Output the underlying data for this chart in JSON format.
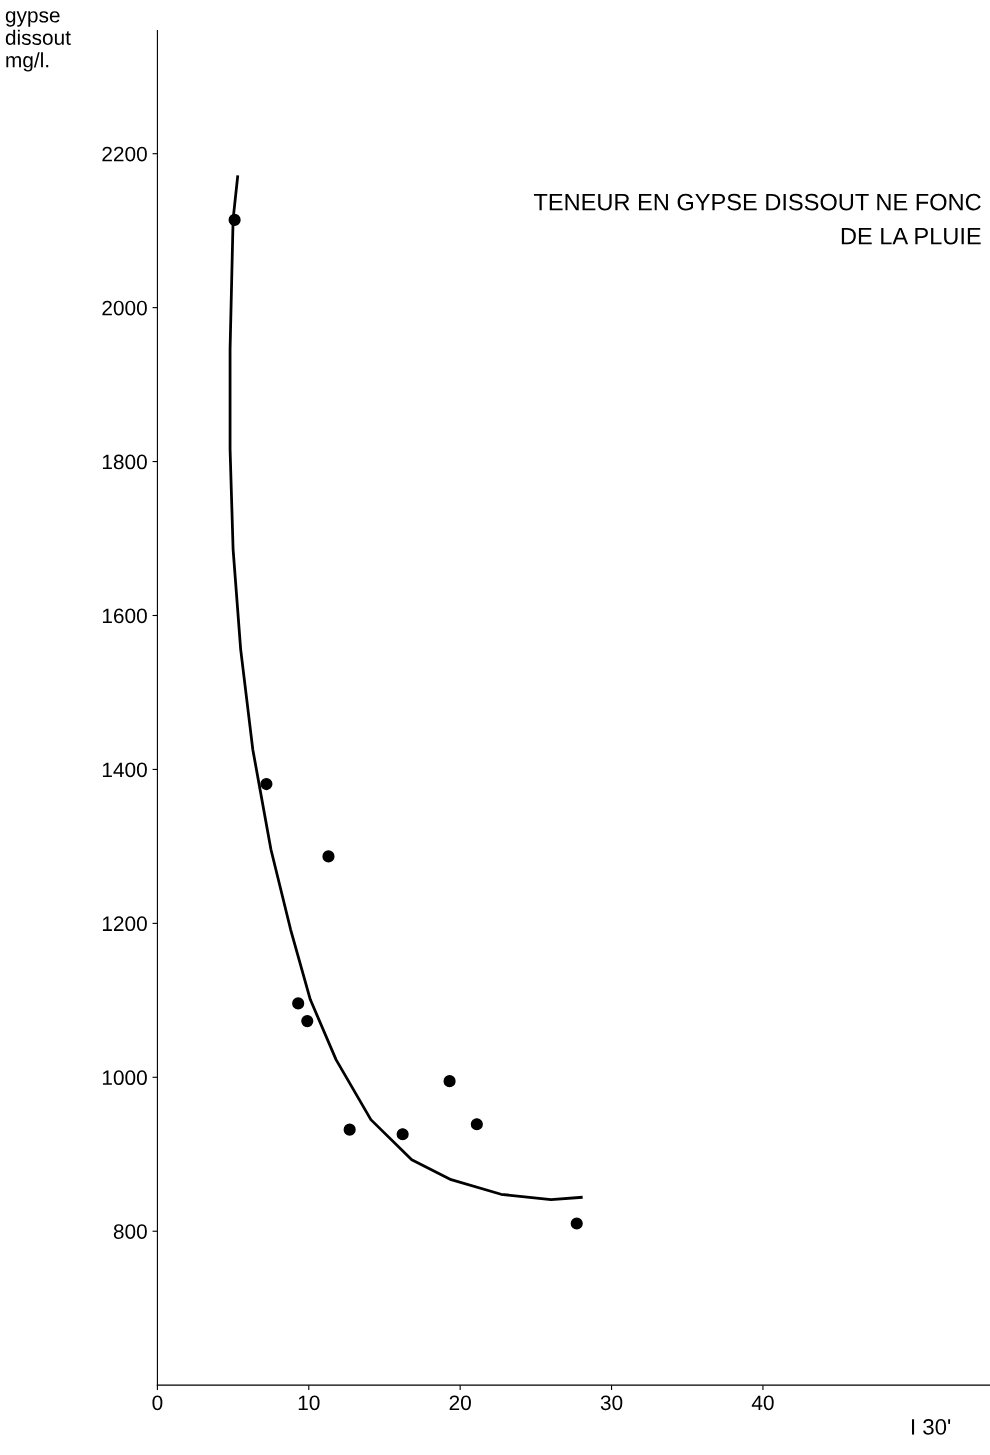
{
  "chart_data": {
    "type": "scatter",
    "title": "TENEUR EN GYPSE DISSOUT NE FONC\nDE LA PLUIE",
    "ylabel": "gypse\ndissout\nmg/l.",
    "xlabel": "I 30'",
    "series": [
      {
        "color": "#000000",
        "marker": "circle",
        "x": [
          5.1,
          7.2,
          11.3,
          9.3,
          9.9,
          12.7,
          16.2,
          19.3,
          21.1,
          27.7
        ],
        "values": [
          2114,
          1381,
          1287,
          1096,
          1073,
          932,
          926,
          995,
          939,
          810
        ]
      },
      {
        "type": "line",
        "color": "#000000",
        "marker": "none",
        "x": [
          5.3,
          5.0,
          4.8,
          4.8,
          5.0,
          5.5,
          6.3,
          7.5,
          8.8,
          10.1,
          11.8,
          14.1,
          16.8,
          19.4,
          22.7,
          26.0,
          28.0
        ],
        "values": [
          2170,
          2115,
          1946,
          1816,
          1686,
          1556,
          1426,
          1296,
          1192,
          1101,
          1023,
          945,
          893,
          867,
          848,
          841,
          844
        ]
      }
    ],
    "xlim": [
      0,
      55
    ],
    "ylim": [
      600,
      2360
    ],
    "xticks": [
      0,
      10,
      20,
      30,
      40
    ],
    "yticks": [
      800,
      1000,
      1200,
      1400,
      1600,
      1800,
      2000,
      2200
    ],
    "grid": false
  }
}
